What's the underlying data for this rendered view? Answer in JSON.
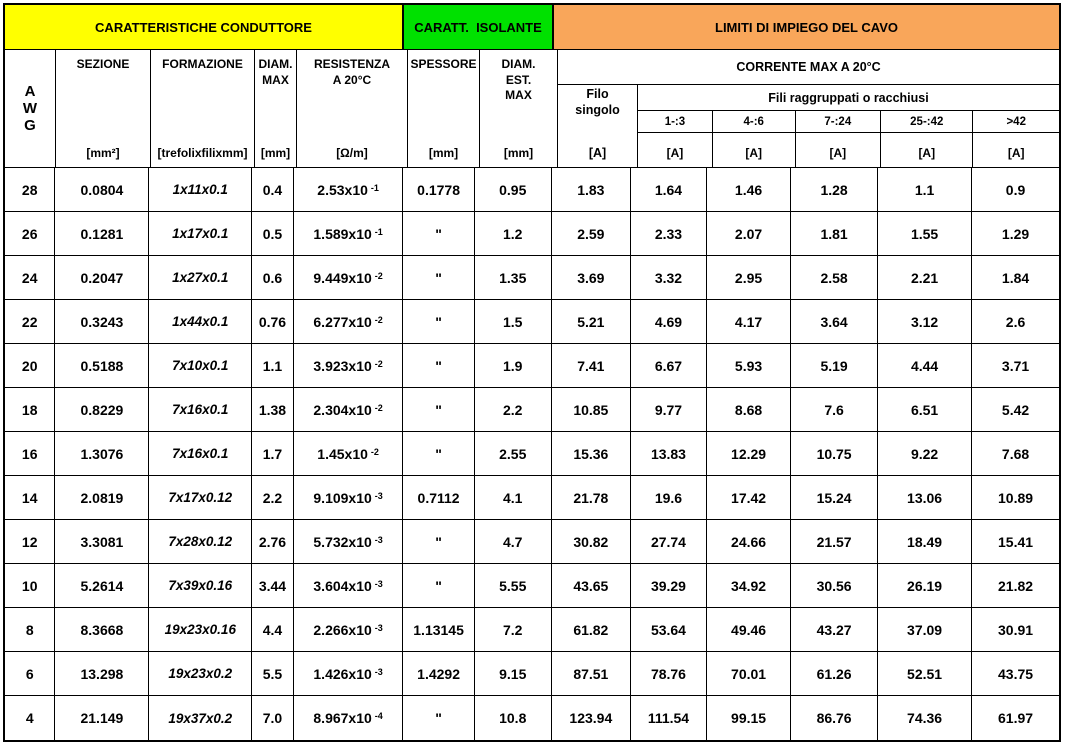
{
  "bands": [
    {
      "label": "CARATTERISTICHE CONDUTTORE",
      "color": "#FFFF00"
    },
    {
      "label": "CARATT.  ISOLANTE",
      "color": "#00E100"
    },
    {
      "label": "LIMITI DI IMPIEGO DEL CAVO",
      "color": "#F9A65A"
    }
  ],
  "columns": [
    {
      "title": "A\nW\nG",
      "unit": ""
    },
    {
      "title": "SEZIONE",
      "unit": "[mm²]"
    },
    {
      "title": "FORMAZIONE",
      "unit": "[trefolixfilixmm]"
    },
    {
      "title": "DIAM.\nMAX",
      "unit": "[mm]"
    },
    {
      "title": "RESISTENZA\nA 20°C",
      "unit": "[Ω/m]"
    },
    {
      "title": "SPESSORE",
      "unit": "[mm]"
    },
    {
      "title": "DIAM.\nEST.\nMAX",
      "unit": "[mm]"
    }
  ],
  "corrente": {
    "title": "CORRENTE MAX A 20°C",
    "filo_singolo": "Filo\nsingolo",
    "filo_unit": "[A]",
    "group_title": "Fili raggruppati o racchiusi",
    "ranges": [
      "1-:3",
      "4-:6",
      "7-:24",
      "25-:42",
      ">42"
    ],
    "range_unit": "[A]"
  },
  "rows": [
    {
      "awg": "28",
      "sez": "0.0804",
      "form": "1x11x0.1",
      "diam": "0.4",
      "res": "2.53x10",
      "res_exp": "-1",
      "spes": "0.1778",
      "dest": "0.95",
      "amp": [
        "1.83",
        "1.64",
        "1.46",
        "1.28",
        "1.1",
        "0.9"
      ]
    },
    {
      "awg": "26",
      "sez": "0.1281",
      "form": "1x17x0.1",
      "diam": "0.5",
      "res": "1.589x10",
      "res_exp": "-1",
      "spes": "\"",
      "dest": "1.2",
      "amp": [
        "2.59",
        "2.33",
        "2.07",
        "1.81",
        "1.55",
        "1.29"
      ]
    },
    {
      "awg": "24",
      "sez": "0.2047",
      "form": "1x27x0.1",
      "diam": "0.6",
      "res": "9.449x10",
      "res_exp": "-2",
      "spes": "\"",
      "dest": "1.35",
      "amp": [
        "3.69",
        "3.32",
        "2.95",
        "2.58",
        "2.21",
        "1.84"
      ]
    },
    {
      "awg": "22",
      "sez": "0.3243",
      "form": "1x44x0.1",
      "diam": "0.76",
      "res": "6.277x10",
      "res_exp": "-2",
      "spes": "\"",
      "dest": "1.5",
      "amp": [
        "5.21",
        "4.69",
        "4.17",
        "3.64",
        "3.12",
        "2.6"
      ]
    },
    {
      "awg": "20",
      "sez": "0.5188",
      "form": "7x10x0.1",
      "diam": "1.1",
      "res": "3.923x10",
      "res_exp": "-2",
      "spes": "\"",
      "dest": "1.9",
      "amp": [
        "7.41",
        "6.67",
        "5.93",
        "5.19",
        "4.44",
        "3.71"
      ]
    },
    {
      "awg": "18",
      "sez": "0.8229",
      "form": "7x16x0.1",
      "diam": "1.38",
      "res": "2.304x10",
      "res_exp": "-2",
      "spes": "\"",
      "dest": "2.2",
      "amp": [
        "10.85",
        "9.77",
        "8.68",
        "7.6",
        "6.51",
        "5.42"
      ]
    },
    {
      "awg": "16",
      "sez": "1.3076",
      "form": "7x16x0.1",
      "diam": "1.7",
      "res": "1.45x10",
      "res_exp": "-2",
      "spes": "\"",
      "dest": "2.55",
      "amp": [
        "15.36",
        "13.83",
        "12.29",
        "10.75",
        "9.22",
        "7.68"
      ]
    },
    {
      "awg": "14",
      "sez": "2.0819",
      "form": "7x17x0.12",
      "diam": "2.2",
      "res": "9.109x10",
      "res_exp": "-3",
      "spes": "0.7112",
      "dest": "4.1",
      "amp": [
        "21.78",
        "19.6",
        "17.42",
        "15.24",
        "13.06",
        "10.89"
      ]
    },
    {
      "awg": "12",
      "sez": "3.3081",
      "form": "7x28x0.12",
      "diam": "2.76",
      "res": "5.732x10",
      "res_exp": "-3",
      "spes": "\"",
      "dest": "4.7",
      "amp": [
        "30.82",
        "27.74",
        "24.66",
        "21.57",
        "18.49",
        "15.41"
      ]
    },
    {
      "awg": "10",
      "sez": "5.2614",
      "form": "7x39x0.16",
      "diam": "3.44",
      "res": "3.604x10",
      "res_exp": "-3",
      "spes": "\"",
      "dest": "5.55",
      "amp": [
        "43.65",
        "39.29",
        "34.92",
        "30.56",
        "26.19",
        "21.82"
      ]
    },
    {
      "awg": "8",
      "sez": "8.3668",
      "form": "19x23x0.16",
      "diam": "4.4",
      "res": "2.266x10",
      "res_exp": "-3",
      "spes": "1.13145",
      "dest": "7.2",
      "amp": [
        "61.82",
        "53.64",
        "49.46",
        "43.27",
        "37.09",
        "30.91"
      ]
    },
    {
      "awg": "6",
      "sez": "13.298",
      "form": "19x23x0.2",
      "diam": "5.5",
      "res": "1.426x10",
      "res_exp": "-3",
      "spes": "1.4292",
      "dest": "9.15",
      "amp": [
        "87.51",
        "78.76",
        "70.01",
        "61.26",
        "52.51",
        "43.75"
      ]
    },
    {
      "awg": "4",
      "sez": "21.149",
      "form": "19x37x0.2",
      "diam": "7.0",
      "res": "8.967x10",
      "res_exp": "-4",
      "spes": "\"",
      "dest": "10.8",
      "amp": [
        "123.94",
        "111.54",
        "99.15",
        "86.76",
        "74.36",
        "61.97"
      ]
    }
  ]
}
